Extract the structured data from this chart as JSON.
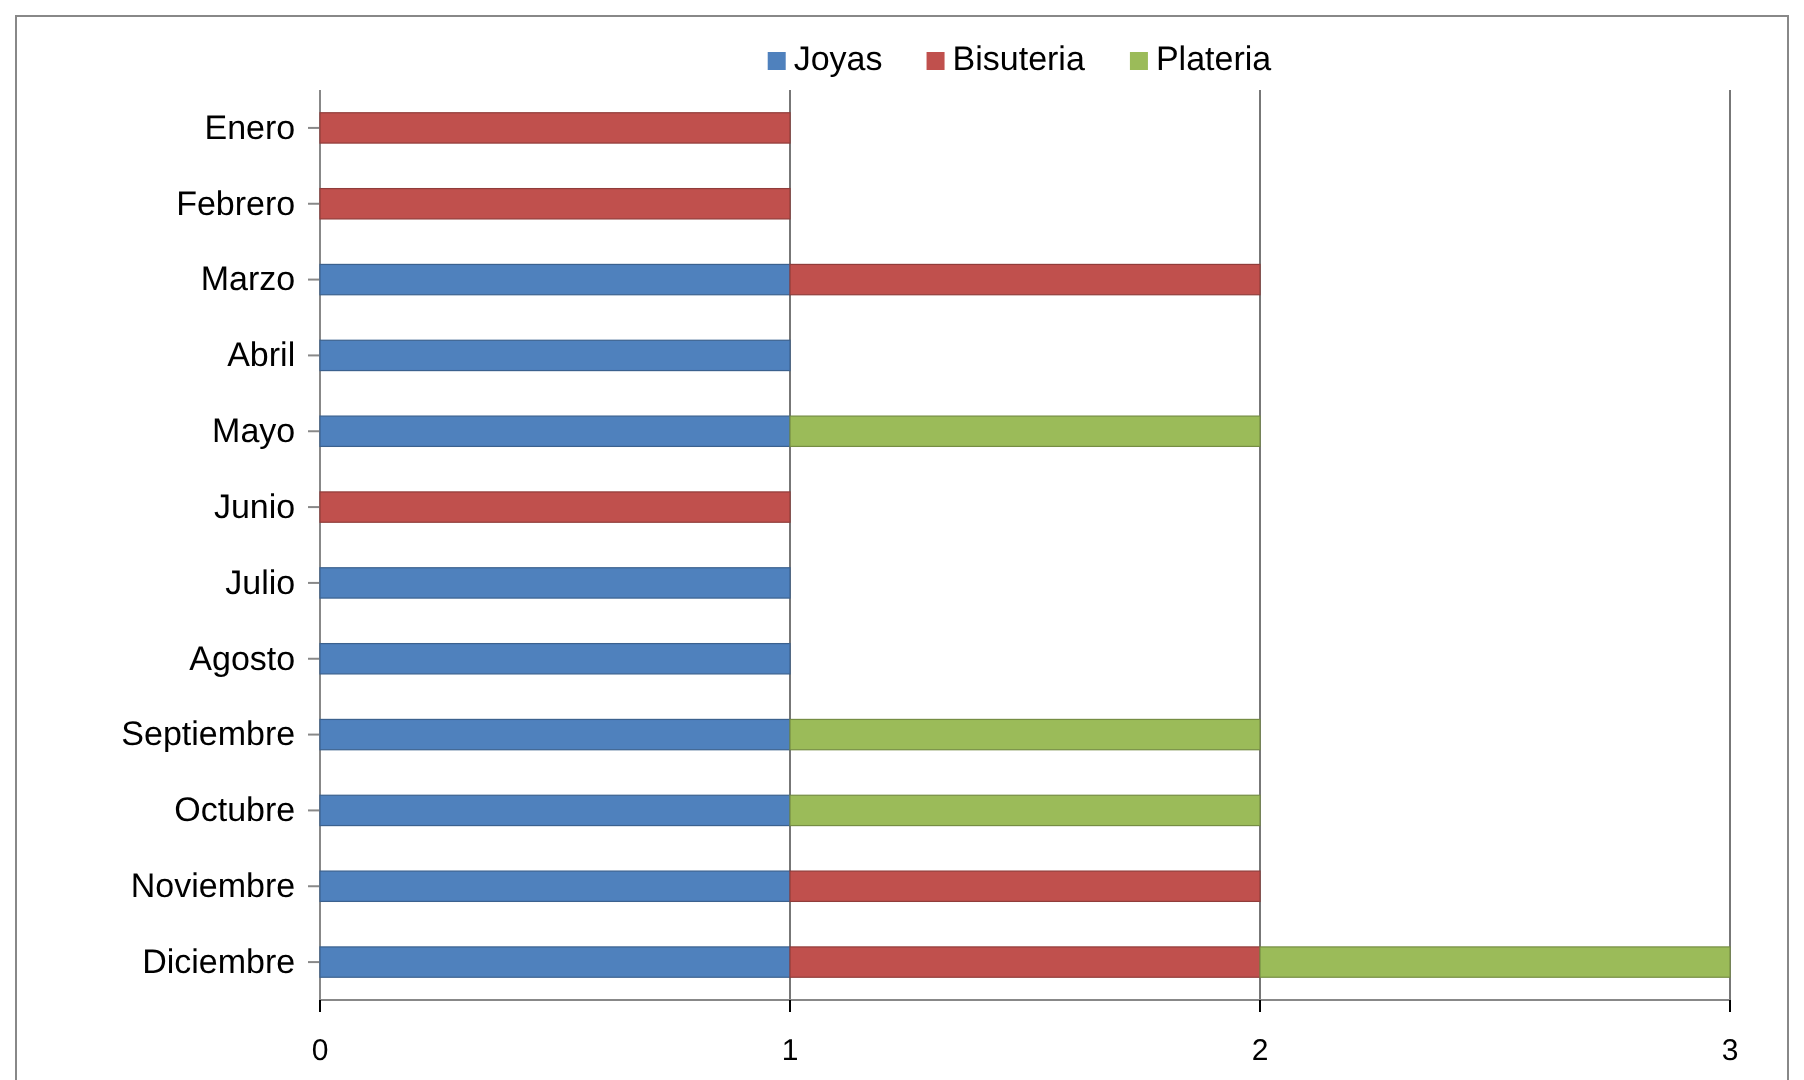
{
  "chart_data": {
    "type": "bar",
    "orientation": "horizontal",
    "stacked": true,
    "categories": [
      "Enero",
      "Febrero",
      "Marzo",
      "Abril",
      "Mayo",
      "Junio",
      "Julio",
      "Agosto",
      "Septiembre",
      "Octubre",
      "Noviembre",
      "Diciembre"
    ],
    "series": [
      {
        "name": "Joyas",
        "color": "#4f81bd",
        "values": [
          0,
          0,
          1,
          1,
          1,
          0,
          1,
          1,
          1,
          1,
          1,
          1
        ]
      },
      {
        "name": "Bisuteria",
        "color": "#c0504d",
        "values": [
          1,
          1,
          1,
          0,
          0,
          1,
          0,
          0,
          0,
          0,
          1,
          1
        ]
      },
      {
        "name": "Plateria",
        "color": "#9bbb59",
        "values": [
          0,
          0,
          0,
          0,
          1,
          0,
          0,
          0,
          1,
          1,
          0,
          1
        ]
      }
    ],
    "xlim": [
      0,
      3
    ],
    "xticks": [
      0,
      1,
      2,
      3
    ],
    "grid": "x",
    "legend": "top"
  }
}
